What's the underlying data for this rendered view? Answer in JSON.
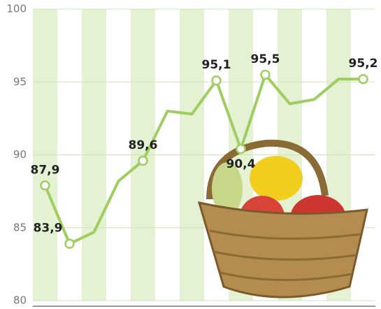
{
  "chart_data": {
    "type": "line",
    "categories": [
      null,
      null,
      null,
      null,
      null,
      null,
      null,
      null,
      null,
      null,
      null,
      null,
      null,
      null
    ],
    "series": [
      {
        "color": "#9fcd5f",
        "values": [
          87.9,
          83.9,
          84.7,
          88.2,
          89.6,
          93.0,
          92.8,
          95.1,
          90.4,
          95.5,
          93.5,
          93.8,
          95.2,
          95.2
        ],
        "value_labels": [
          "87,9",
          "83,9",
          null,
          null,
          "89,6",
          null,
          null,
          "95,1",
          "90,4",
          "95,5",
          null,
          null,
          null,
          "95,2"
        ]
      }
    ],
    "ylim": [
      80,
      100
    ],
    "yticks": [
      80,
      85,
      90,
      95,
      100
    ],
    "grid": true
  }
}
